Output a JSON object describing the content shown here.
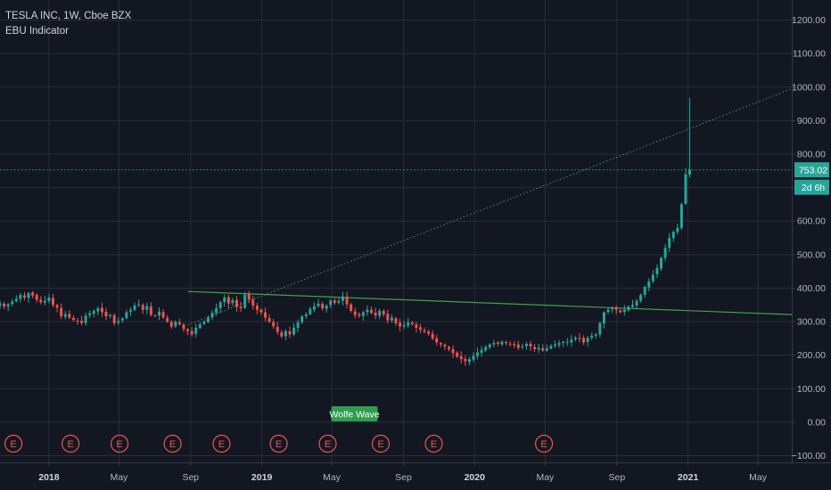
{
  "legend": {
    "symbol_line": "TESLA INC, 1W, Cboe BZX",
    "indicator": "EBU Indicator"
  },
  "colors": {
    "background": "#131722",
    "grid": "#2a2e39",
    "text": "#b2b5be",
    "up": "#26a69a",
    "down": "#ef5350",
    "price_line": "#26a69a",
    "trendline": "#43a047",
    "earnings": "#ef5350",
    "wolfe": "#2e9e4e"
  },
  "price_label": {
    "value": "753.02",
    "countdown": "2d 6h"
  },
  "wolfe_wave_label": "Wolfe Wave",
  "earnings_marker": "E",
  "chart_data": {
    "type": "candlestick",
    "title": "TESLA INC, 1W, Cboe BZX",
    "y_axis": {
      "side": "right",
      "range": [
        -120,
        1260
      ],
      "ticks": [
        1200,
        1100,
        1000,
        900,
        800,
        700,
        600,
        500,
        400,
        300,
        200,
        100,
        0,
        -100
      ],
      "tick_labels": [
        "1200.00",
        "1100.00",
        "1000.00",
        "900.00",
        "800.00",
        "700.00",
        "600.00",
        "500.00",
        "400.00",
        "300.00",
        "200.00",
        "100.00",
        "0.00",
        "−100.00"
      ]
    },
    "x_axis": {
      "range": [
        "2017-10-09",
        "2021-06-28"
      ],
      "ticks": [
        {
          "date": "2018-01-01",
          "label": "2018",
          "bold": true
        },
        {
          "date": "2018-05-01",
          "label": "May",
          "bold": false
        },
        {
          "date": "2018-09-01",
          "label": "Sep",
          "bold": false
        },
        {
          "date": "2019-01-01",
          "label": "2019",
          "bold": true
        },
        {
          "date": "2019-05-01",
          "label": "May",
          "bold": false
        },
        {
          "date": "2019-09-01",
          "label": "Sep",
          "bold": false
        },
        {
          "date": "2020-01-01",
          "label": "2020",
          "bold": true
        },
        {
          "date": "2020-05-01",
          "label": "May",
          "bold": false
        },
        {
          "date": "2020-09-01",
          "label": "Sep",
          "bold": false
        },
        {
          "date": "2021-01-01",
          "label": "2021",
          "bold": true
        },
        {
          "date": "2021-05-01",
          "label": "May",
          "bold": false
        }
      ]
    },
    "grid": true,
    "current_price": 753.02,
    "series": [
      {
        "start": "2017-10-09",
        "weekly_close": [
          355,
          345,
          352,
          360,
          368,
          380,
          372,
          385,
          378,
          365,
          358,
          362,
          372,
          350,
          342,
          316,
          322,
          312,
          305,
          302,
          296,
          318,
          325,
          332,
          340,
          328,
          316,
          320,
          296,
          302,
          310,
          328,
          335,
          348,
          352,
          335,
          346,
          320,
          318,
          330,
          312,
          300,
          285,
          300,
          292,
          278,
          272,
          262,
          282,
          292,
          300,
          312,
          326,
          340,
          358,
          372,
          354,
          364,
          344,
          340,
          380,
          366,
          348,
          335,
          328,
          312,
          300,
          286,
          270,
          256,
          272,
          262,
          282,
          298,
          316,
          322,
          338,
          346,
          354,
          340,
          348,
          364,
          356,
          362,
          375,
          352,
          332,
          320,
          318,
          328,
          336,
          326,
          318,
          332,
          322,
          304,
          312,
          295,
          286,
          290,
          298,
          292,
          282,
          276,
          270,
          264,
          250,
          238,
          232,
          226,
          218,
          206,
          195,
          188,
          182,
          188,
          198,
          208,
          216,
          224,
          232,
          236,
          234,
          240,
          236,
          232,
          230,
          222,
          226,
          234,
          226,
          218,
          222,
          214,
          220,
          228,
          232,
          236,
          240,
          240,
          246,
          252,
          250,
          238,
          252,
          258,
          262,
          296,
          328,
          336,
          340,
          335,
          328,
          336,
          345,
          350,
          362,
          380,
          404,
          420,
          440,
          460,
          490,
          520,
          550,
          568,
          580,
          650,
          740,
          753
        ]
      }
    ],
    "annotations": {
      "horizontal_line": 753.02,
      "trendlines": [
        {
          "style": "solid",
          "from": {
            "date": "2018-08-27",
            "price": 390
          },
          "to": {
            "date": "2021-06-28",
            "price": 321
          }
        },
        {
          "style": "dotted",
          "from": {
            "date": "2018-08-27",
            "price": 290
          },
          "to": {
            "date": "2021-06-28",
            "price": 995
          }
        }
      ],
      "earnings_dates": [
        "2017-11-01",
        "2018-02-07",
        "2018-05-02",
        "2018-08-01",
        "2018-10-24",
        "2019-01-30",
        "2019-04-24",
        "2019-07-24",
        "2019-10-23",
        "2020-04-29"
      ],
      "wolfe_wave_date": "2019-06-09"
    }
  }
}
